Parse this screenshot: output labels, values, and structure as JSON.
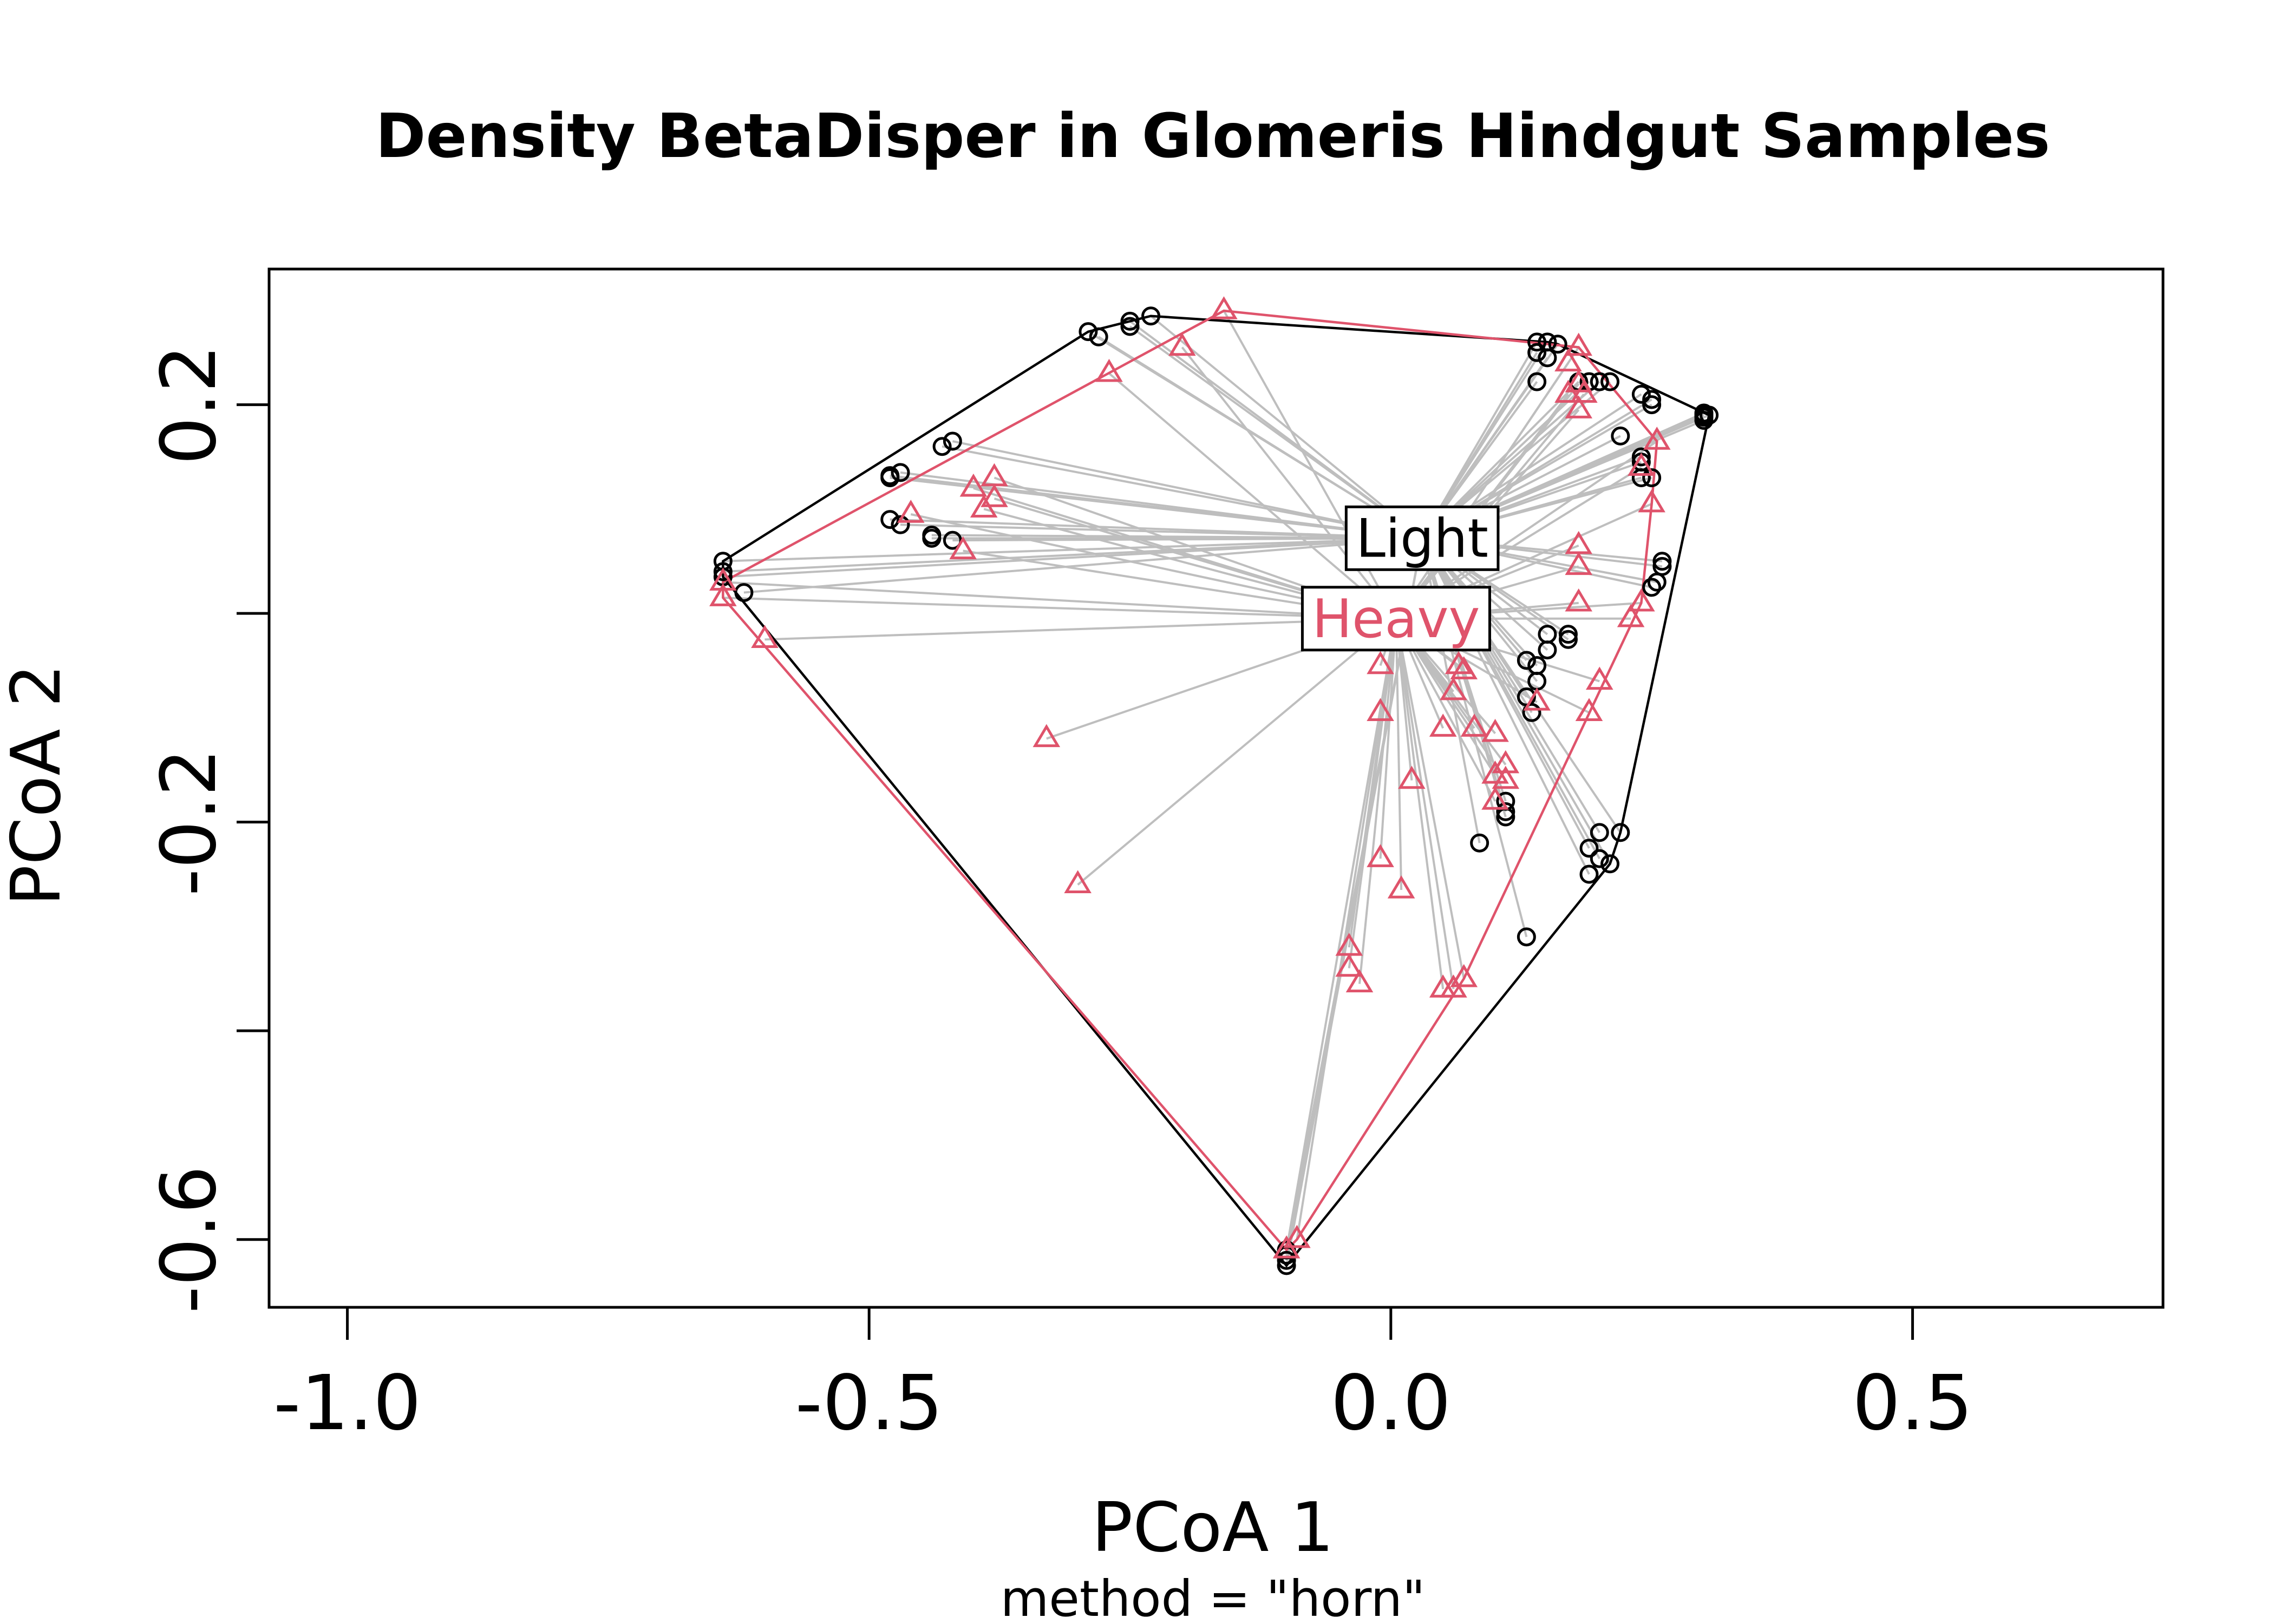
{
  "chart_data": {
    "type": "scatter",
    "title": "Density BetaDisper in Glomeris Hindgut Samples",
    "xlabel": "PCoA 1",
    "ylabel": "PCoA 2",
    "subtitle": "method = \"horn\"",
    "xlim": [
      -1.075,
      0.74
    ],
    "ylim": [
      -0.665,
      0.33
    ],
    "x_ticks": [
      -1.0,
      -0.5,
      0.0,
      0.5
    ],
    "x_tick_labels": [
      "-1.0",
      "-0.5",
      "0.0",
      "0.5"
    ],
    "y_ticks": [
      0.2,
      0.0,
      -0.2,
      -0.4,
      -0.6
    ],
    "y_tick_labels": [
      "0.2",
      "",
      "-0.2",
      "",
      "-0.6"
    ],
    "grid": false,
    "spider_color": "#BEBEBE",
    "series": [
      {
        "name": "Light",
        "color": "#000000",
        "marker": "circle",
        "centroid": [
          0.03,
          0.072
        ],
        "points": [
          [
            -0.29,
            0.27
          ],
          [
            -0.28,
            0.265
          ],
          [
            -0.25,
            0.28
          ],
          [
            -0.25,
            0.275
          ],
          [
            -0.23,
            0.285
          ],
          [
            -0.48,
            0.132
          ],
          [
            -0.48,
            0.13
          ],
          [
            -0.47,
            0.135
          ],
          [
            -0.43,
            0.16
          ],
          [
            -0.42,
            0.165
          ],
          [
            -0.48,
            0.09
          ],
          [
            -0.47,
            0.085
          ],
          [
            -0.44,
            0.075
          ],
          [
            -0.44,
            0.072
          ],
          [
            -0.42,
            0.07
          ],
          [
            -0.64,
            0.05
          ],
          [
            -0.64,
            0.04
          ],
          [
            -0.64,
            0.035
          ],
          [
            -0.62,
            0.02
          ],
          [
            0.14,
            0.26
          ],
          [
            0.15,
            0.26
          ],
          [
            0.16,
            0.258
          ],
          [
            0.14,
            0.25
          ],
          [
            0.15,
            0.245
          ],
          [
            0.14,
            0.222
          ],
          [
            0.18,
            0.222
          ],
          [
            0.19,
            0.222
          ],
          [
            0.2,
            0.222
          ],
          [
            0.21,
            0.222
          ],
          [
            0.24,
            0.21
          ],
          [
            0.25,
            0.205
          ],
          [
            0.22,
            0.17
          ],
          [
            0.25,
            0.2
          ],
          [
            0.3,
            0.19
          ],
          [
            0.3,
            0.188
          ],
          [
            0.3,
            0.192
          ],
          [
            0.305,
            0.19
          ],
          [
            0.3,
            0.185
          ],
          [
            0.24,
            0.15
          ],
          [
            0.24,
            0.145
          ],
          [
            0.25,
            0.13
          ],
          [
            0.24,
            0.13
          ],
          [
            0.26,
            0.05
          ],
          [
            0.26,
            0.045
          ],
          [
            0.255,
            0.03
          ],
          [
            0.25,
            0.025
          ],
          [
            0.15,
            -0.02
          ],
          [
            0.17,
            -0.02
          ],
          [
            0.17,
            -0.025
          ],
          [
            0.15,
            -0.035
          ],
          [
            0.14,
            -0.05
          ],
          [
            0.13,
            -0.045
          ],
          [
            0.14,
            -0.065
          ],
          [
            0.13,
            -0.08
          ],
          [
            0.135,
            -0.095
          ],
          [
            0.11,
            -0.18
          ],
          [
            0.11,
            -0.19
          ],
          [
            0.11,
            -0.195
          ],
          [
            0.085,
            -0.22
          ],
          [
            0.13,
            -0.31
          ],
          [
            0.2,
            -0.21
          ],
          [
            0.22,
            -0.21
          ],
          [
            0.19,
            -0.225
          ],
          [
            0.2,
            -0.235
          ],
          [
            0.21,
            -0.24
          ],
          [
            0.19,
            -0.25
          ],
          [
            -0.1,
            -0.61
          ],
          [
            -0.1,
            -0.615
          ],
          [
            -0.1,
            -0.62
          ],
          [
            -0.1,
            -0.625
          ]
        ]
      },
      {
        "name": "Heavy",
        "color": "#DF536B",
        "marker": "triangle",
        "centroid": [
          0.005,
          -0.005
        ],
        "points": [
          [
            -0.16,
            0.29
          ],
          [
            -0.2,
            0.255
          ],
          [
            -0.27,
            0.23
          ],
          [
            -0.38,
            0.13
          ],
          [
            -0.4,
            0.12
          ],
          [
            -0.38,
            0.11
          ],
          [
            -0.39,
            0.1
          ],
          [
            -0.46,
            0.095
          ],
          [
            -0.41,
            0.06
          ],
          [
            -0.64,
            0.03
          ],
          [
            -0.64,
            0.015
          ],
          [
            -0.6,
            -0.025
          ],
          [
            -0.33,
            -0.12
          ],
          [
            -0.3,
            -0.26
          ],
          [
            0.18,
            0.255
          ],
          [
            0.17,
            0.24
          ],
          [
            0.18,
            0.22
          ],
          [
            0.17,
            0.21
          ],
          [
            0.185,
            0.21
          ],
          [
            0.18,
            0.195
          ],
          [
            0.255,
            0.165
          ],
          [
            0.24,
            0.14
          ],
          [
            0.25,
            0.105
          ],
          [
            0.18,
            0.065
          ],
          [
            0.18,
            0.045
          ],
          [
            0.18,
            0.01
          ],
          [
            0.24,
            0.01
          ],
          [
            0.23,
            -0.005
          ],
          [
            0.2,
            -0.065
          ],
          [
            0.19,
            -0.095
          ],
          [
            0.14,
            -0.085
          ],
          [
            -0.01,
            -0.05
          ],
          [
            -0.01,
            -0.095
          ],
          [
            0.065,
            -0.05
          ],
          [
            0.07,
            -0.055
          ],
          [
            0.06,
            -0.075
          ],
          [
            0.05,
            -0.11
          ],
          [
            0.08,
            -0.11
          ],
          [
            0.1,
            -0.115
          ],
          [
            0.11,
            -0.145
          ],
          [
            0.1,
            -0.155
          ],
          [
            0.11,
            -0.16
          ],
          [
            0.1,
            -0.18
          ],
          [
            0.02,
            -0.16
          ],
          [
            -0.01,
            -0.235
          ],
          [
            0.01,
            -0.265
          ],
          [
            -0.04,
            -0.32
          ],
          [
            -0.04,
            -0.34
          ],
          [
            -0.03,
            -0.355
          ],
          [
            0.05,
            -0.36
          ],
          [
            0.06,
            -0.36
          ],
          [
            0.07,
            -0.35
          ],
          [
            -0.09,
            -0.6
          ],
          [
            -0.1,
            -0.61
          ]
        ]
      }
    ],
    "centroid_labels": [
      {
        "text": "Light",
        "color": "#000000",
        "position": [
          0.03,
          0.072
        ]
      },
      {
        "text": "Heavy",
        "color": "#DF536B",
        "position": [
          0.005,
          -0.005
        ]
      }
    ]
  }
}
